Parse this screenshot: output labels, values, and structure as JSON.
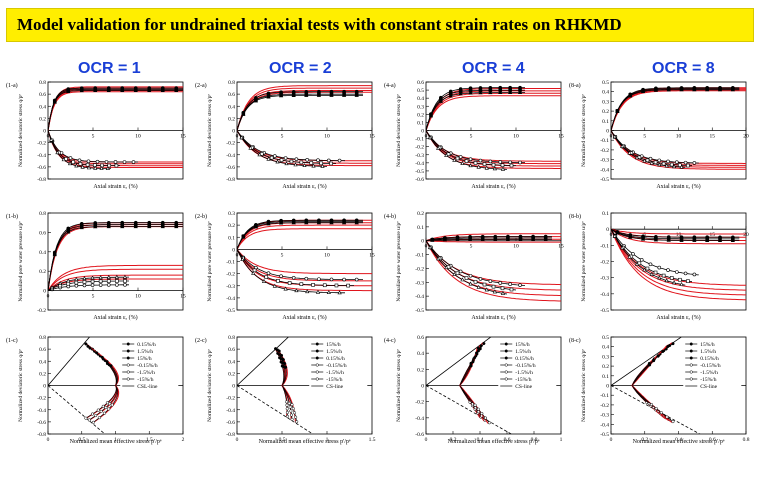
{
  "banner": {
    "title": "Model validation for undrained triaxial tests with constant strain rates on RHKMD",
    "color": "#ffee00"
  },
  "columns": [
    {
      "label": "OCR = 1"
    },
    {
      "label": "OCR = 2"
    },
    {
      "label": "OCR = 4"
    },
    {
      "label": "OCR = 8"
    }
  ],
  "colors": {
    "model": "#e0141c",
    "data": "#000000",
    "header": "#1a3fd6"
  },
  "chart_data": [
    {
      "id": "1-a",
      "type": "line",
      "xlabel": "Axial strain εₐ (%)",
      "ylabel": "Normalized deviatoric stress q/pᵉ",
      "xlim": [
        0,
        15
      ],
      "ylim": [
        -0.8,
        0.8
      ],
      "xticks": [
        0,
        5,
        10,
        15
      ],
      "yticks": [
        -0.8,
        -0.6,
        -0.4,
        -0.2,
        0,
        0.2,
        0.4,
        0.6,
        0.8
      ],
      "model": {
        "comp": [
          0.72,
          0.7,
          0.68,
          0.66,
          0.64
        ],
        "ext": [
          -0.52,
          -0.55,
          -0.58,
          -0.61
        ],
        "k": 1.5
      },
      "data": {
        "comp_end": [
          0.7,
          0.68,
          0.66
        ],
        "comp_xmax": [
          15,
          15,
          15
        ],
        "ext_end": [
          -0.52,
          -0.58,
          -0.63
        ],
        "ext_xmax": [
          10,
          8,
          7
        ]
      }
    },
    {
      "id": "2-a",
      "type": "line",
      "xlabel": "Axial strain εₐ (%)",
      "ylabel": "Normalized deviatoric stress q/pᵉ",
      "xlim": [
        0,
        15
      ],
      "ylim": [
        -0.8,
        0.8
      ],
      "xticks": [
        0,
        5,
        10,
        15
      ],
      "yticks": [
        -0.8,
        -0.6,
        -0.4,
        -0.2,
        0,
        0.2,
        0.4,
        0.6,
        0.8
      ],
      "model": {
        "comp": [
          0.74,
          0.7,
          0.66,
          0.63
        ],
        "ext": [
          -0.5,
          -0.54,
          -0.58
        ],
        "k": 0.8
      },
      "data": {
        "comp_end": [
          0.64,
          0.6,
          0.58
        ],
        "comp_xmax": [
          14,
          14,
          14
        ],
        "ext_end": [
          -0.5,
          -0.55,
          -0.6
        ],
        "ext_xmax": [
          12,
          11,
          10
        ]
      }
    },
    {
      "id": "4-a",
      "type": "line",
      "xlabel": "Axial strain εₐ (%)",
      "ylabel": "Normalized deviatoric stress q/pᵉ",
      "xlim": [
        0,
        15
      ],
      "ylim": [
        -0.6,
        0.6
      ],
      "xticks": [
        0,
        5,
        10,
        15
      ],
      "yticks": [
        -0.6,
        -0.5,
        -0.4,
        -0.3,
        -0.2,
        -0.1,
        0,
        0.1,
        0.2,
        0.3,
        0.4,
        0.5,
        0.6
      ],
      "model": {
        "comp": [
          0.52,
          0.49,
          0.46,
          0.43
        ],
        "ext": [
          -0.38,
          -0.41,
          -0.44,
          -0.47
        ],
        "k": 0.8
      },
      "data": {
        "comp_end": [
          0.53,
          0.5,
          0.47
        ],
        "comp_xmax": [
          11,
          11,
          11
        ],
        "ext_end": [
          -0.4,
          -0.44,
          -0.49
        ],
        "ext_xmax": [
          11,
          10,
          9
        ]
      }
    },
    {
      "id": "8-a",
      "type": "line",
      "xlabel": "Axial strain εₐ (%)",
      "ylabel": "Normalized deviatoric stress q/pᵉ",
      "xlim": [
        0,
        20
      ],
      "ylim": [
        -0.5,
        0.5
      ],
      "xticks": [
        0,
        5,
        10,
        15,
        20
      ],
      "yticks": [
        -0.5,
        -0.4,
        -0.3,
        -0.2,
        -0.1,
        0,
        0.1,
        0.2,
        0.3,
        0.4,
        0.5
      ],
      "model": {
        "comp": [
          0.44,
          0.43,
          0.42,
          0.41
        ],
        "ext": [
          -0.34,
          -0.36,
          -0.38,
          -0.4
        ],
        "k": 0.6
      },
      "data": {
        "comp_end": [
          0.44,
          0.43,
          0.42
        ],
        "comp_xmax": [
          19,
          19,
          19
        ],
        "ext_end": [
          -0.34,
          -0.37,
          -0.39
        ],
        "ext_xmax": [
          13,
          12,
          11
        ]
      }
    },
    {
      "id": "1-b",
      "type": "line",
      "xlabel": "Axial strain εₐ (%)",
      "ylabel": "Normalized pore water pressure u/pᵉ",
      "xlim": [
        0,
        15
      ],
      "ylim": [
        -0.2,
        0.8
      ],
      "xticks": [
        0,
        5,
        10,
        15
      ],
      "yticks": [
        -0.2,
        0,
        0.2,
        0.4,
        0.6,
        0.8
      ],
      "model": {
        "comp": [
          0.7,
          0.68,
          0.66
        ],
        "ext": [
          0.12,
          0.16,
          0.22,
          0.26
        ],
        "k": 1.0
      },
      "data": {
        "comp_end": [
          0.7,
          0.68,
          0.66
        ],
        "comp_xmax": [
          15,
          15,
          15
        ],
        "ext_end": [
          0.06,
          0.1,
          0.14
        ],
        "ext_xmax": [
          9,
          9,
          9
        ]
      }
    },
    {
      "id": "2-b",
      "type": "line",
      "xlabel": "Axial strain εₐ (%)",
      "ylabel": "Normalized pore water pressure u/pᵉ",
      "xlim": [
        0,
        15
      ],
      "ylim": [
        -0.5,
        0.3
      ],
      "xticks": [
        0,
        5,
        10,
        15
      ],
      "yticks": [
        -0.5,
        -0.4,
        -0.3,
        -0.2,
        -0.1,
        0,
        0.1,
        0.2,
        0.3
      ],
      "model": {
        "comp": [
          0.24,
          0.22,
          0.2,
          0.17
        ],
        "ext": [
          -0.2,
          -0.26,
          -0.3,
          -0.34
        ],
        "k": 0.8
      },
      "data": {
        "comp_end": [
          0.24,
          0.23,
          0.22
        ],
        "comp_xmax": [
          14,
          14,
          14
        ],
        "ext_end": [
          -0.25,
          -0.3,
          -0.36
        ],
        "ext_xmax": [
          14,
          13,
          12
        ]
      }
    },
    {
      "id": "4-b",
      "type": "line",
      "xlabel": "Axial strain εₐ (%)",
      "ylabel": "Normalized pore water pressure u/pᵉ",
      "xlim": [
        0,
        15
      ],
      "ylim": [
        -0.5,
        0.2
      ],
      "xticks": [
        0,
        5,
        10,
        15
      ],
      "yticks": [
        -0.5,
        -0.4,
        -0.3,
        -0.2,
        -0.1,
        0,
        0.1,
        0.2
      ],
      "model": {
        "comp": [
          0.05,
          0.03,
          0.01,
          -0.01
        ],
        "ext": [
          -0.32,
          -0.36,
          -0.4,
          -0.44
        ],
        "k": 0.5
      },
      "data": {
        "comp_end": [
          0.03,
          0.02,
          0.01
        ],
        "comp_xmax": [
          14,
          14,
          14
        ],
        "ext_end": [
          -0.34,
          -0.38,
          -0.42
        ],
        "ext_xmax": [
          11,
          10,
          9
        ]
      }
    },
    {
      "id": "8-b",
      "type": "line",
      "xlabel": "Axial strain εₐ (%)",
      "ylabel": "Normalized pore water pressure u/pᵉ",
      "xlim": [
        0,
        20
      ],
      "ylim": [
        -0.5,
        0.1
      ],
      "xticks": [
        0,
        5,
        10,
        15,
        20
      ],
      "yticks": [
        -0.5,
        -0.4,
        -0.3,
        -0.2,
        -0.1,
        0,
        0.1
      ],
      "model": {
        "comp": [
          -0.03,
          -0.05,
          -0.07,
          -0.09
        ],
        "ext": [
          -0.35,
          -0.38,
          -0.41,
          -0.44
        ],
        "k": 0.4
      },
      "data": {
        "comp_end": [
          -0.05,
          -0.06,
          -0.07
        ],
        "comp_xmax": [
          19,
          19,
          19
        ],
        "ext_end": [
          -0.3,
          -0.35,
          -0.38
        ],
        "ext_xmax": [
          13,
          12,
          11
        ]
      }
    },
    {
      "id": "1-c",
      "type": "line",
      "xlabel": "Normalized mean effective stress p'/pᵉ",
      "ylabel": "Normalized deviatoric stress q/pᵉ",
      "xlim": [
        0,
        2
      ],
      "ylim": [
        -0.8,
        0.8
      ],
      "xticks": [
        0,
        0.5,
        1,
        1.5,
        2
      ],
      "yticks": [
        -0.8,
        -0.6,
        -0.4,
        -0.2,
        0,
        0.2,
        0.4,
        0.6,
        0.8
      ],
      "csl": {
        "slopeC": 1.3,
        "slopeE": -0.95
      },
      "path": {
        "start": 1.0,
        "comp": [
          [
            0.55,
            0.7
          ],
          [
            0.58,
            0.66
          ],
          [
            0.61,
            0.63
          ]
        ],
        "ext": [
          [
            0.55,
            -0.55
          ],
          [
            0.6,
            -0.58
          ],
          [
            0.66,
            -0.62
          ]
        ]
      },
      "legend": [
        "0.15%/h",
        "1.5%/h",
        "15%/h",
        "-0.15%/h",
        "-1.5%/h",
        "-15%/h",
        "CSL-line"
      ]
    },
    {
      "id": "2-c",
      "type": "line",
      "xlabel": "Normalized  mean effective stress p'/pᵉ",
      "ylabel": "Normalized deviatoric stress q/pᵉ",
      "xlim": [
        0,
        1.5
      ],
      "ylim": [
        -0.8,
        0.8
      ],
      "xticks": [
        0,
        0.5,
        1,
        1.5
      ],
      "yticks": [
        -0.8,
        -0.6,
        -0.4,
        -0.2,
        0,
        0.2,
        0.4,
        0.6,
        0.8
      ],
      "csl": {
        "slopeC": 1.4,
        "slopeE": -0.95
      },
      "path": {
        "start": 0.5,
        "comp": [
          [
            0.42,
            0.62
          ],
          [
            0.44,
            0.6
          ],
          [
            0.46,
            0.58
          ]
        ],
        "ext": [
          [
            0.55,
            -0.52
          ],
          [
            0.6,
            -0.57
          ],
          [
            0.65,
            -0.61
          ]
        ]
      },
      "legend": [
        "15%/h",
        "1.5%/h",
        "0.15%/h",
        "-0.15%/h",
        "-1.5%/h",
        "-15%/h",
        "CS-line"
      ]
    },
    {
      "id": "4-c",
      "type": "line",
      "xlabel": "Normalized  mean effective stress p'/pᵉ",
      "ylabel": "Normalized deviatoric stress q/pᵉ",
      "xlim": [
        0,
        1
      ],
      "ylim": [
        -0.6,
        0.6
      ],
      "xticks": [
        0,
        0.2,
        0.4,
        0.6,
        0.8,
        1
      ],
      "yticks": [
        -0.6,
        -0.4,
        -0.2,
        0,
        0.2,
        0.4,
        0.6
      ],
      "csl": {
        "slopeC": 1.25,
        "slopeE": -0.95
      },
      "path": {
        "start": 0.25,
        "comp": [
          [
            0.42,
            0.53
          ],
          [
            0.4,
            0.5
          ],
          [
            0.38,
            0.47
          ]
        ],
        "ext": [
          [
            0.4,
            -0.4
          ],
          [
            0.43,
            -0.44
          ],
          [
            0.46,
            -0.47
          ]
        ]
      },
      "legend": [
        "15%/h",
        "1.5%/h",
        "0.15%/h",
        "-0.15%/h",
        "-1.5%/h",
        "-15%/h",
        "CS-line"
      ]
    },
    {
      "id": "8-c",
      "type": "line",
      "xlabel": "Normalized  mean effective stress p'/pᵉ",
      "ylabel": "Normalized deviatoric stress q/pᵉ",
      "xlim": [
        0,
        0.8
      ],
      "ylim": [
        -0.5,
        0.5
      ],
      "xticks": [
        0,
        0.2,
        0.4,
        0.6,
        0.8
      ],
      "yticks": [
        -0.5,
        -0.4,
        -0.3,
        -0.2,
        -0.1,
        0,
        0.1,
        0.2,
        0.3,
        0.4,
        0.5
      ],
      "csl": {
        "slopeC": 1.2,
        "slopeE": -0.95
      },
      "path": {
        "start": 0.125,
        "comp": [
          [
            0.36,
            0.44
          ],
          [
            0.34,
            0.42
          ],
          [
            0.33,
            0.41
          ]
        ],
        "ext": [
          [
            0.32,
            -0.34
          ],
          [
            0.34,
            -0.36
          ],
          [
            0.36,
            -0.38
          ]
        ]
      },
      "legend": [
        "15%/h",
        "1.5%/h",
        "0.15%/h",
        "-0.15%/h",
        "-1.5%/h",
        "-15%/h",
        "CS-line"
      ]
    }
  ]
}
